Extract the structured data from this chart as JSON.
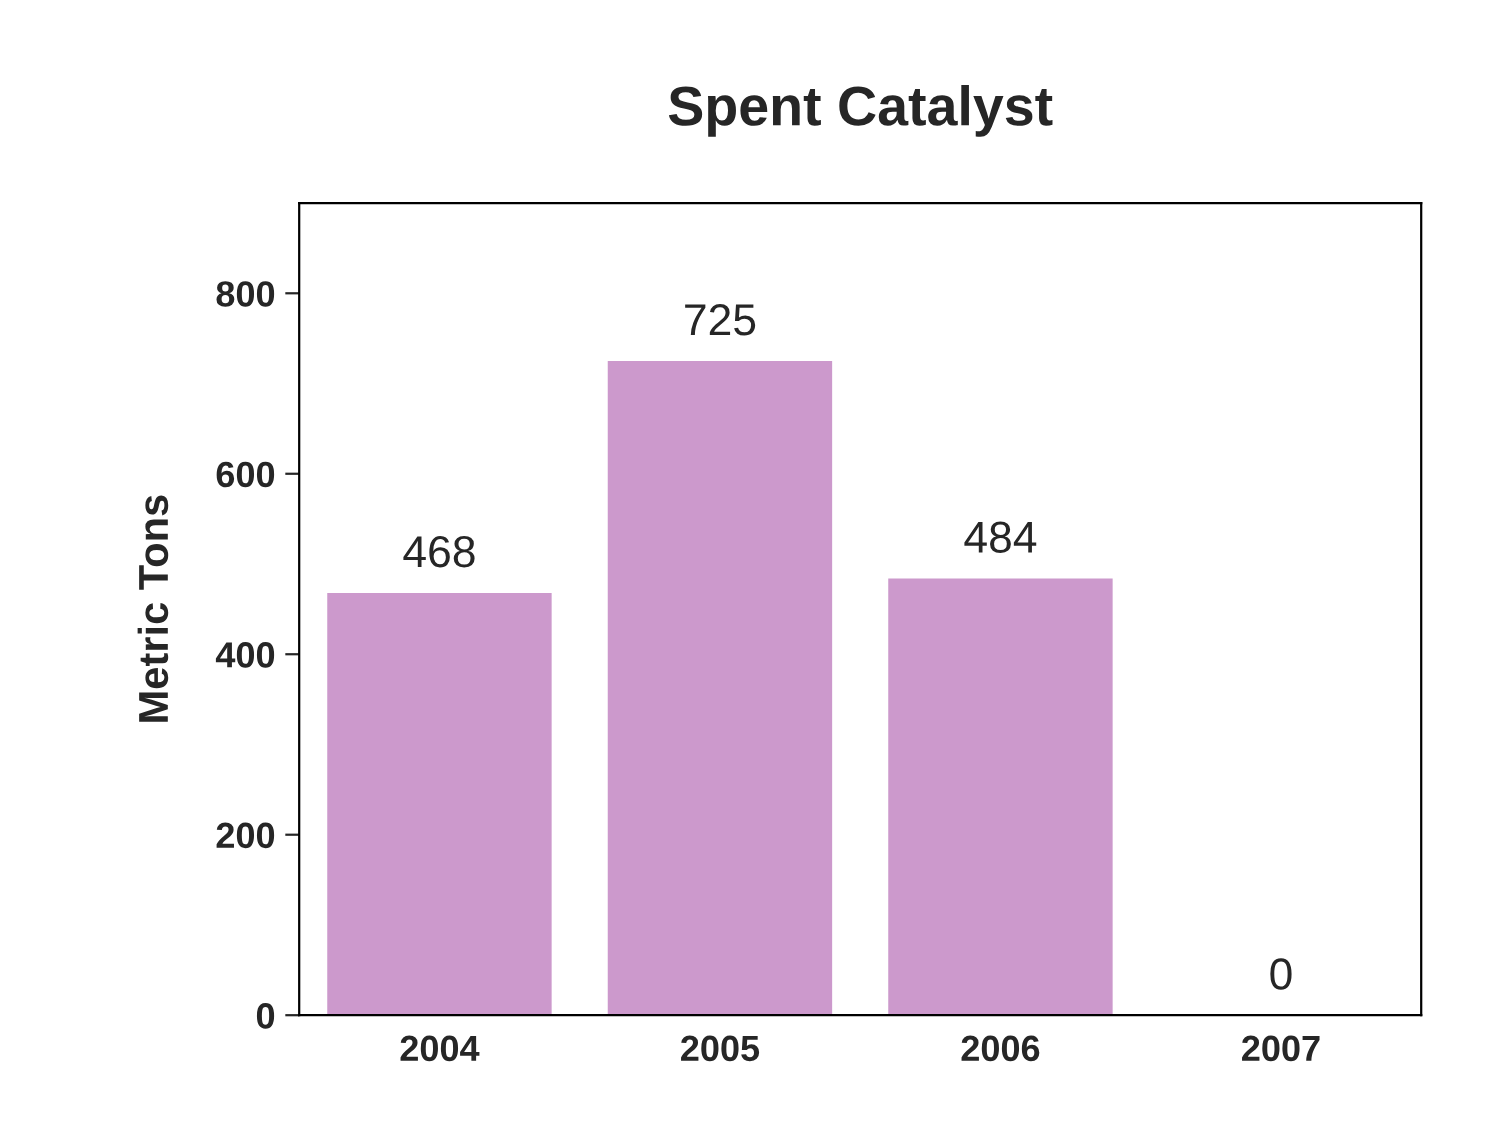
{
  "chart_data": {
    "type": "bar",
    "title": "Spent Catalyst",
    "ylabel": "Metric Tons",
    "categories": [
      "2004",
      "2005",
      "2006",
      "2007"
    ],
    "values": [
      468,
      725,
      484,
      0
    ],
    "color": "#cc99cc",
    "ylim": [
      0,
      900
    ],
    "yticks": [
      0,
      200,
      400,
      600,
      800
    ],
    "data_labels": true,
    "grid": false,
    "legend": false
  }
}
